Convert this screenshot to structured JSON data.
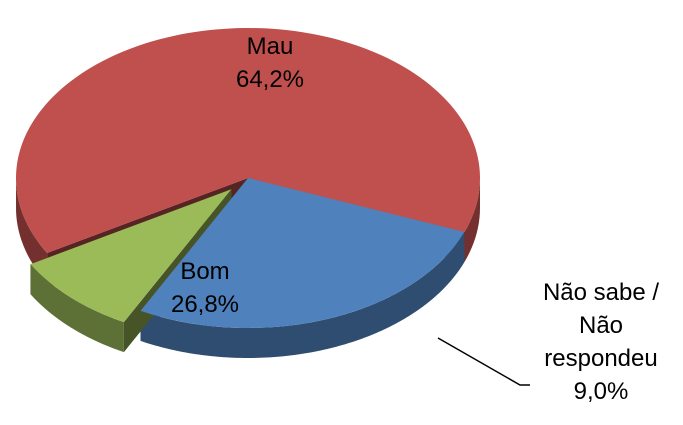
{
  "chart_data": {
    "type": "pie",
    "categories": [
      "Mau",
      "Bom",
      "Não sabe / Não respondeu"
    ],
    "values": [
      64.2,
      26.8,
      9.0
    ],
    "value_labels": [
      "64,2%",
      "26,8%",
      "9,0%"
    ],
    "colors": [
      "#c0504d",
      "#4f81bd",
      "#9bbb59"
    ],
    "exploded": [
      false,
      false,
      true
    ]
  }
}
